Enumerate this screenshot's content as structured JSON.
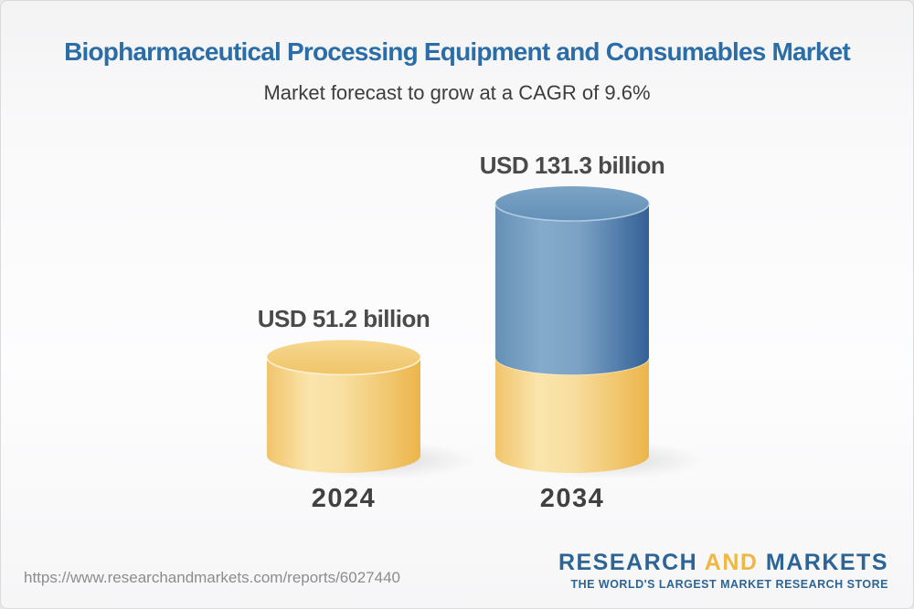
{
  "header": {
    "title": "Biopharmaceutical Processing Equipment and Consumables Market",
    "subtitle": "Market forecast to grow at a CAGR of 9.6%"
  },
  "chart_data": {
    "type": "bar",
    "style": "3d-cylinder",
    "title": "Biopharmaceutical Processing Equipment and Consumables Market",
    "subtitle": "Market forecast to grow at a CAGR of 9.6%",
    "unit": "USD billion",
    "cagr": "9.6%",
    "categories": [
      "2024",
      "2034"
    ],
    "values": [
      51.2,
      131.3
    ],
    "bars": [
      {
        "category": "2024",
        "total": 51.2,
        "label": "USD 51.2 billion",
        "segments": [
          {
            "value": 51.2,
            "color": "yellow"
          }
        ]
      },
      {
        "category": "2034",
        "total": 131.3,
        "label": "USD 131.3 billion",
        "segments": [
          {
            "value": 51.2,
            "color": "yellow"
          },
          {
            "value": 80.1,
            "color": "blue"
          }
        ]
      }
    ],
    "palette": {
      "yellow": "#F0C468",
      "blue": "#4579A8"
    },
    "legend": "none",
    "grid": false,
    "axis_labels": {
      "x": "",
      "y": ""
    }
  },
  "footer": {
    "url": "https://www.researchandmarkets.com/reports/6027440",
    "logo": {
      "part1": "RESEARCH",
      "part2": "AND",
      "part3": "MARKETS",
      "tagline": "THE WORLD'S LARGEST MARKET RESEARCH STORE"
    }
  }
}
